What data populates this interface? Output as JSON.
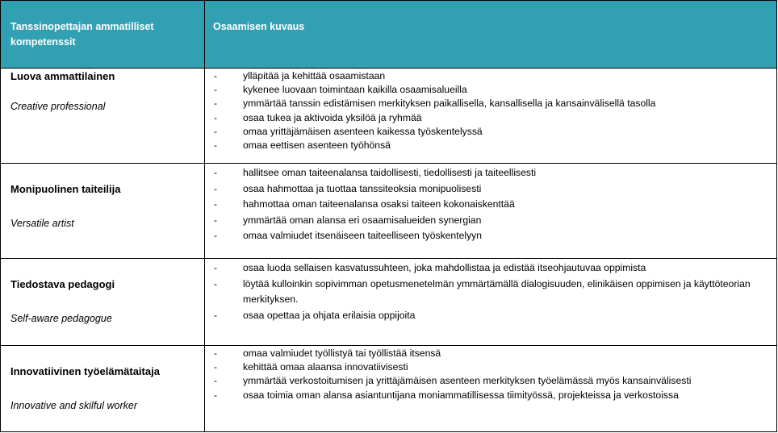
{
  "header": {
    "col1": "Tanssinopettajan ammatilliset kompetenssit",
    "col2": "Osaamisen kuvaus"
  },
  "bullet": "-",
  "header_color": "#31a0b3",
  "rows": [
    {
      "title": "Luova ammattilainen",
      "subtitle": "Creative professional",
      "items": [
        "ylläpitää ja kehittää osaamistaan",
        "kykenee luovaan toimintaan kaikilla osaamisalueilla",
        "ymmärtää tanssin edistämisen merkityksen paikallisella, kansallisella ja kansainvälisellä tasolla",
        "osaa tukea ja aktivoida yksilöä ja ryhmää",
        "omaa yrittäjämäisen asenteen kaikessa työskentelyssä",
        "omaa eettisen asenteen työhönsä"
      ]
    },
    {
      "title": "Monipuolinen taiteilija",
      "subtitle": "Versatile artist",
      "items": [
        "hallitsee oman taiteenalansa taidollisesti, tiedollisesti ja taiteellisesti",
        "osaa hahmottaa ja tuottaa tanssiteoksia monipuolisesti",
        "hahmottaa oman taiteenalansa osaksi taiteen kokonaiskenttää",
        "ymmärtää oman alansa eri osaamisalueiden synergian",
        "omaa valmiudet itsenäiseen taiteelliseen työskentelyyn"
      ]
    },
    {
      "title": "Tiedostava pedagogi",
      "subtitle": "Self-aware pedagogue",
      "items": [
        "osaa luoda sellaisen kasvatussuhteen, joka mahdollistaa ja edistää itseohjautuvaa oppimista",
        "löytää kulloinkin sopivimman opetusmenetelmän ymmärtämällä dialogisuuden, elinikäisen oppimisen ja käyttöteorian merkityksen.",
        "osaa opettaa ja ohjata erilaisia oppijoita"
      ]
    },
    {
      "title": "Innovatiivinen työelämätaitaja",
      "subtitle": "Innovative and skilful worker",
      "items": [
        "omaa valmiudet työllistyä tai työllistää itsensä",
        "kehittää omaa alaansa innovatiivisesti",
        "ymmärtää verkostoitumisen ja yrittäjämäisen asenteen merkityksen työelämässä myös kansainvälisesti",
        "osaa toimia oman alansa asiantuntijana moniammatillisessa tiimityössä, projekteissa ja verkostoissa"
      ]
    }
  ]
}
